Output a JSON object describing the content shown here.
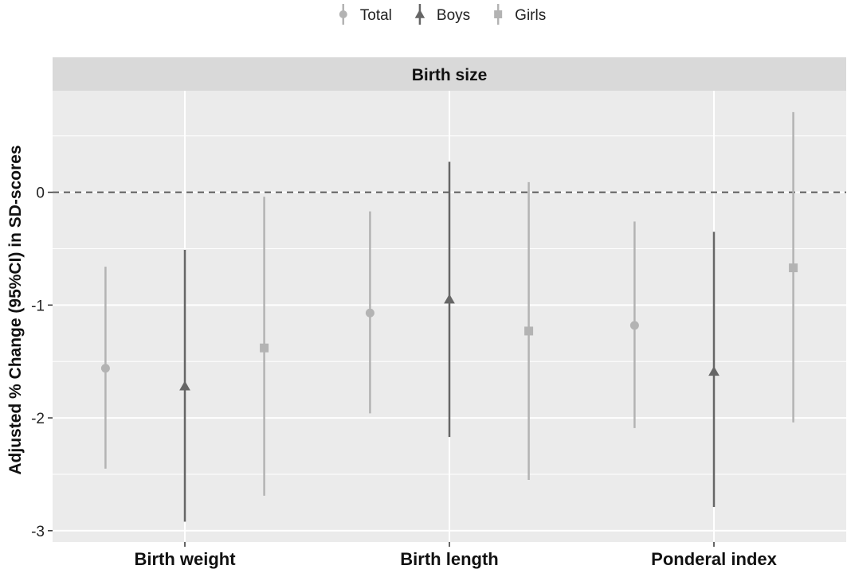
{
  "chart_data": {
    "type": "scatter",
    "subtype": "pointrange",
    "panel_title": "Birth size",
    "ylabel": "Adjusted % Change (95%CI) in SD-scores",
    "xlabel": "",
    "categories": [
      "Birth weight",
      "Birth length",
      "Ponderal index"
    ],
    "ylim": [
      -3.1,
      0.9
    ],
    "yticks": [
      0,
      -1,
      -2,
      -3
    ],
    "ytick_labels": [
      "0",
      "-1",
      "-2",
      "-3"
    ],
    "reference_line": 0,
    "grid": true,
    "legend_position": "top",
    "series": [
      {
        "name": "Total",
        "marker": "circle",
        "color": "#b3b3b3",
        "values": [
          -1.56,
          -1.07,
          -1.18
        ],
        "lower": [
          -2.45,
          -1.96,
          -2.09
        ],
        "upper": [
          -0.66,
          -0.17,
          -0.26
        ]
      },
      {
        "name": "Boys",
        "marker": "triangle",
        "color": "#666666",
        "values": [
          -1.72,
          -0.95,
          -1.59
        ],
        "lower": [
          -2.92,
          -2.17,
          -2.79
        ],
        "upper": [
          -0.51,
          0.27,
          -0.35
        ]
      },
      {
        "name": "Girls",
        "marker": "square",
        "color": "#b3b3b3",
        "values": [
          -1.38,
          -1.23,
          -0.67
        ],
        "lower": [
          -2.69,
          -2.55,
          -2.04
        ],
        "upper": [
          -0.04,
          0.09,
          0.71
        ]
      }
    ]
  }
}
